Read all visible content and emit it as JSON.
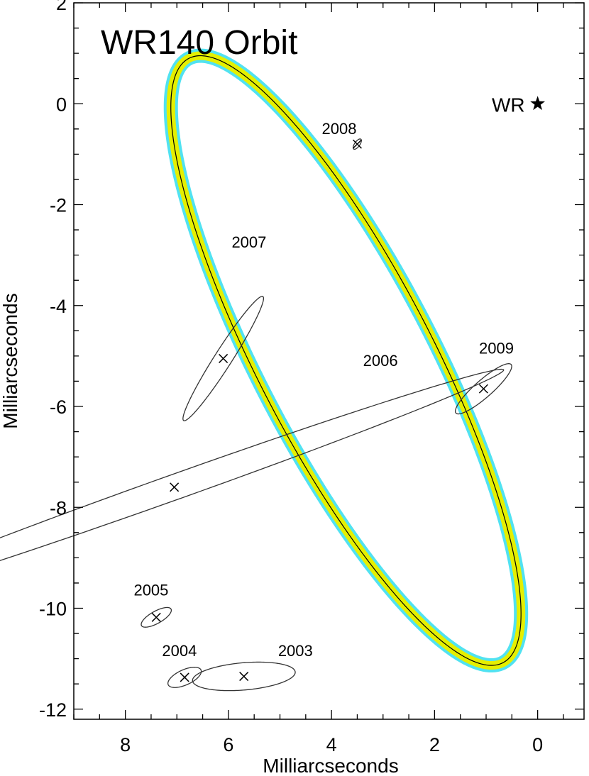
{
  "chart_data": {
    "type": "scatter",
    "title": "WR140 Orbit",
    "xlabel": "Milliarcseconds",
    "ylabel": "Milliarcseconds",
    "xlim": [
      9,
      -0.9
    ],
    "ylim": [
      -12.2,
      2
    ],
    "x_ticks": [
      8,
      6,
      4,
      2,
      0
    ],
    "y_ticks": [
      2,
      0,
      -2,
      -4,
      -6,
      -8,
      -10,
      -12
    ],
    "x_tick_labels": [
      "8",
      "6",
      "4",
      "2",
      "0"
    ],
    "y_tick_labels": [
      "2",
      "0",
      "-2",
      "-4",
      "-6",
      "-8",
      "-10",
      "-12"
    ],
    "grid": false,
    "orbit": {
      "center": [
        3.72,
        -5.09
      ],
      "semi_major": 6.72,
      "semi_minor": 1.7,
      "angle_deg": 63.1,
      "colors": {
        "outer_band": "#33ddee",
        "inner_band": "#e5ef00",
        "line": "#000000"
      }
    },
    "primary_star": {
      "label": "WR",
      "x": 0,
      "y": 0
    },
    "measurements": [
      {
        "epoch": "2003",
        "x": 5.7,
        "y": -11.35,
        "err_a": 1.0,
        "err_b": 0.27,
        "err_angle_deg": -5
      },
      {
        "epoch": "2004",
        "x": 6.85,
        "y": -11.37,
        "err_a": 0.35,
        "err_b": 0.15,
        "err_angle_deg": -25
      },
      {
        "epoch": "2005",
        "x": 7.4,
        "y": -10.18,
        "err_a": 0.33,
        "err_b": 0.12,
        "err_angle_deg": -30
      },
      {
        "epoch": "2006",
        "x": 7.05,
        "y": -7.6,
        "err_a": 6.8,
        "err_b": 0.25,
        "err_angle_deg": -20
      },
      {
        "epoch": "2007",
        "x": 6.1,
        "y": -5.05,
        "err_a": 1.45,
        "err_b": 0.17,
        "err_angle_deg": -58
      },
      {
        "epoch": "2008",
        "x": 3.5,
        "y": -0.8,
        "err_a": 0.12,
        "err_b": 0.05,
        "err_angle_deg": -55
      },
      {
        "epoch": "2009",
        "x": 1.05,
        "y": -5.65,
        "err_a": 0.72,
        "err_b": 0.17,
        "err_angle_deg": -42
      }
    ],
    "annotations": [
      {
        "text": "2003",
        "x": 4.7,
        "y": -10.95
      },
      {
        "text": "2004",
        "x": 6.95,
        "y": -10.95
      },
      {
        "text": "2005",
        "x": 7.5,
        "y": -9.75
      },
      {
        "text": "2006",
        "x": 3.05,
        "y": -5.2
      },
      {
        "text": "2007",
        "x": 5.6,
        "y": -2.85
      },
      {
        "text": "2008",
        "x": 3.85,
        "y": -0.6
      },
      {
        "text": "2009",
        "x": 0.8,
        "y": -4.95
      }
    ]
  }
}
